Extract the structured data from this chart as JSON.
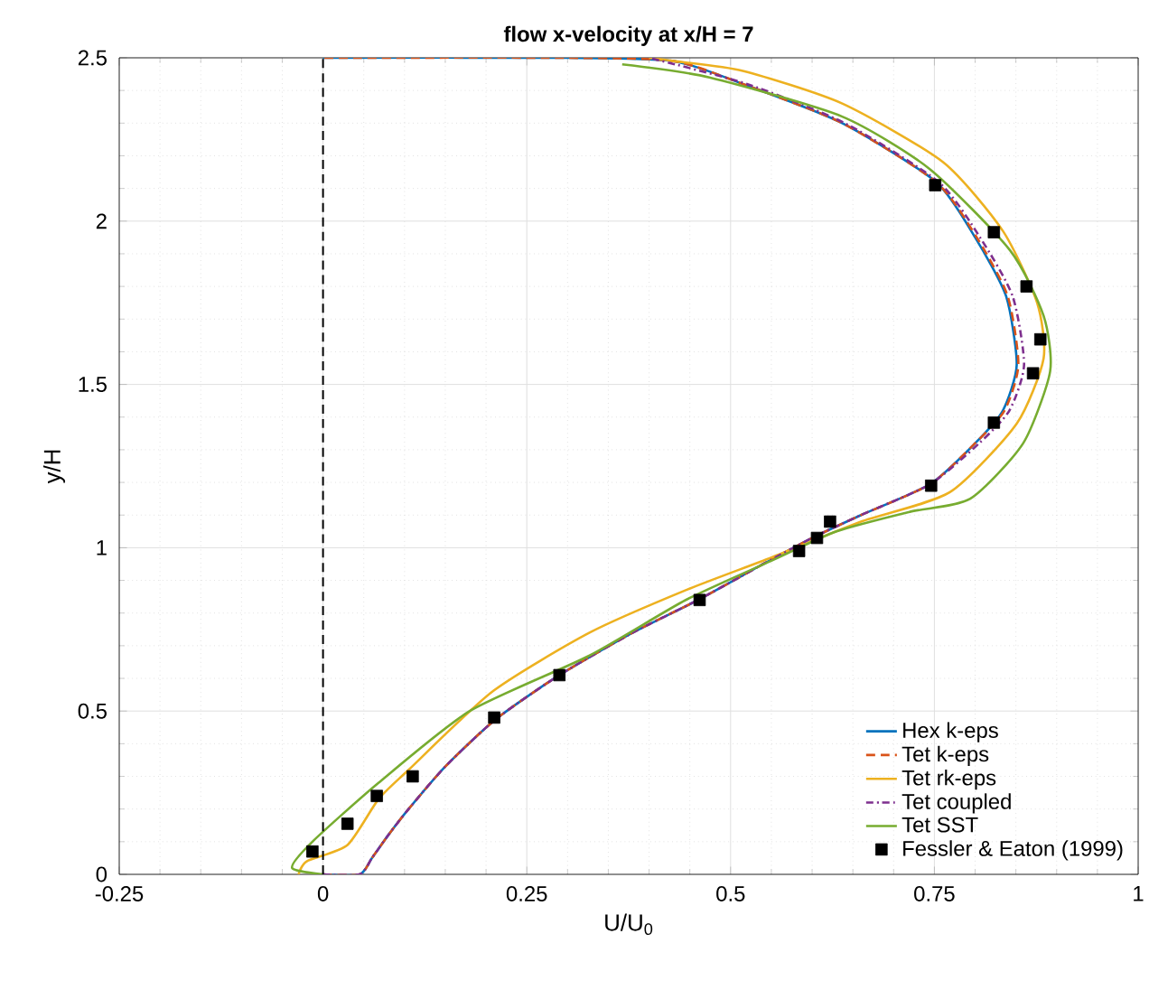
{
  "chart_data": {
    "type": "line",
    "title": "flow x-velocity at x/H = 7",
    "xlabel": "U/U$_{0}$",
    "ylabel": "y/H",
    "xlim": [
      -0.25,
      1
    ],
    "ylim": [
      0,
      2.5
    ],
    "xticks": [
      -0.25,
      0,
      0.25,
      0.5,
      0.75,
      1
    ],
    "yticks": [
      0,
      0.5,
      1,
      1.5,
      2,
      2.5
    ],
    "grid": true,
    "legend": "bottom right",
    "ref_lines": [
      {
        "axis": "x",
        "value": 0,
        "color": "#000000",
        "line_style": "dashed"
      }
    ],
    "series": [
      {
        "name": "Hex k-eps",
        "color": "#0072bd",
        "line_style": "solid",
        "x": [
          0,
          0.045,
          0.06,
          0.08,
          0.105,
          0.15,
          0.212,
          0.29,
          0.38,
          0.46,
          0.54,
          0.6,
          0.66,
          0.745,
          0.8,
          0.834,
          0.851,
          0.838,
          0.8,
          0.752,
          0.637,
          0.515,
          0.43,
          0.3,
          0
        ],
        "values": [
          0,
          0,
          0.05,
          0.12,
          0.2,
          0.33,
          0.475,
          0.61,
          0.74,
          0.84,
          0.95,
          1.03,
          1.1,
          1.195,
          1.32,
          1.42,
          1.56,
          1.77,
          1.95,
          2.12,
          2.3,
          2.42,
          2.49,
          2.5,
          2.5
        ]
      },
      {
        "name": "Tet k-eps",
        "color": "#d95319",
        "line_style": "dashed",
        "x": [
          0,
          0.045,
          0.06,
          0.08,
          0.105,
          0.15,
          0.212,
          0.29,
          0.38,
          0.46,
          0.54,
          0.6,
          0.66,
          0.745,
          0.8,
          0.836,
          0.853,
          0.84,
          0.802,
          0.752,
          0.637,
          0.515,
          0.43,
          0.3,
          0
        ],
        "values": [
          0,
          0,
          0.05,
          0.12,
          0.2,
          0.33,
          0.475,
          0.61,
          0.74,
          0.84,
          0.95,
          1.03,
          1.1,
          1.195,
          1.32,
          1.42,
          1.56,
          1.77,
          1.95,
          2.12,
          2.3,
          2.42,
          2.49,
          2.5,
          2.5
        ]
      },
      {
        "name": "Tet rk-eps",
        "color": "#edb120",
        "line_style": "solid",
        "x": [
          -0.03,
          -0.02,
          0.03,
          0.068,
          0.105,
          0.208,
          0.327,
          0.445,
          0.55,
          0.66,
          0.769,
          0.851,
          0.884,
          0.876,
          0.834,
          0.761,
          0.637,
          0.515,
          0.43,
          0.4
        ],
        "values": [
          0,
          0.04,
          0.09,
          0.23,
          0.32,
          0.56,
          0.74,
          0.87,
          0.97,
          1.08,
          1.17,
          1.38,
          1.58,
          1.75,
          1.97,
          2.18,
          2.36,
          2.46,
          2.49,
          2.5
        ]
      },
      {
        "name": "Tet coupled",
        "color": "#7e2f8e",
        "line_style": "dashdot",
        "x": [
          0,
          0.045,
          0.06,
          0.08,
          0.105,
          0.15,
          0.212,
          0.29,
          0.38,
          0.46,
          0.54,
          0.6,
          0.66,
          0.745,
          0.805,
          0.842,
          0.86,
          0.846,
          0.806,
          0.755,
          0.64,
          0.52,
          0.4
        ],
        "values": [
          0,
          0,
          0.05,
          0.12,
          0.2,
          0.33,
          0.475,
          0.61,
          0.74,
          0.84,
          0.95,
          1.03,
          1.1,
          1.195,
          1.32,
          1.42,
          1.56,
          1.77,
          1.95,
          2.12,
          2.3,
          2.42,
          2.5
        ]
      },
      {
        "name": "Tet SST",
        "color": "#77ac30",
        "line_style": "solid",
        "x": [
          0,
          -0.038,
          -0.013,
          0.068,
          0.18,
          0.327,
          0.445,
          0.55,
          0.63,
          0.72,
          0.794,
          0.859,
          0.892,
          0.884,
          0.843,
          0.744,
          0.637,
          0.474,
          0.367
        ],
        "values": [
          0,
          0.02,
          0.1,
          0.28,
          0.5,
          0.67,
          0.84,
          0.96,
          1.05,
          1.11,
          1.15,
          1.32,
          1.54,
          1.71,
          1.91,
          2.16,
          2.32,
          2.44,
          2.48
        ]
      },
      {
        "name": "Fessler & Eaton (1999)",
        "type": "scatter",
        "color": "#000000",
        "marker": "square",
        "x": [
          -0.013,
          0.03,
          0.066,
          0.11,
          0.21,
          0.29,
          0.462,
          0.584,
          0.606,
          0.622,
          0.746,
          0.823,
          0.871,
          0.88,
          0.863,
          0.823,
          0.751
        ],
        "values": [
          0.07,
          0.155,
          0.24,
          0.3,
          0.48,
          0.61,
          0.84,
          0.99,
          1.03,
          1.08,
          1.19,
          1.383,
          1.534,
          1.638,
          1.8,
          1.966,
          2.11
        ]
      }
    ]
  }
}
